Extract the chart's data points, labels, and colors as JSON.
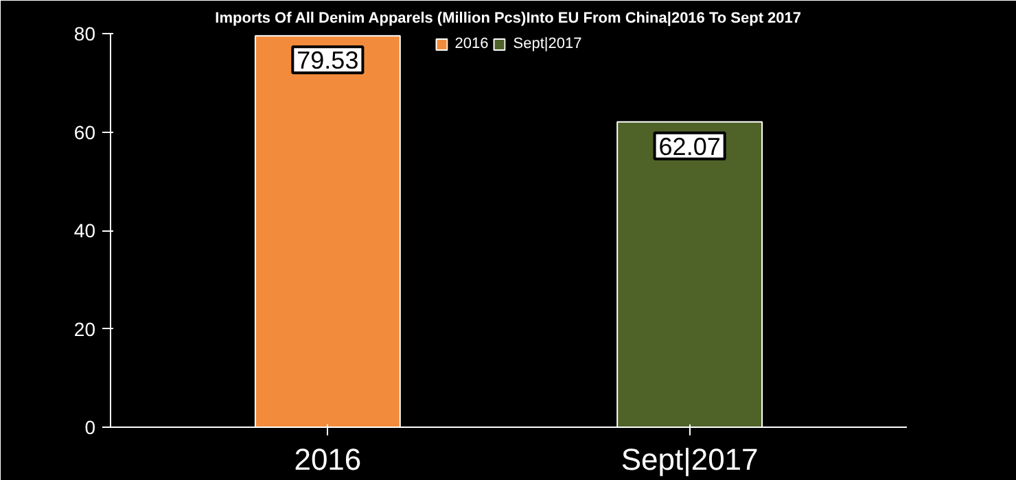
{
  "chart_data": {
    "type": "bar",
    "title": "Imports Of All Denim Apparels (Million Pcs)Into EU From China|2016 To Sept 2017",
    "categories": [
      "2016",
      "Sept|2017"
    ],
    "series": [
      {
        "name": "2016",
        "color": "#f28c3c",
        "values": [
          79.53,
          null
        ]
      },
      {
        "name": "Sept|2017",
        "color": "#4f6228",
        "values": [
          null,
          62.07
        ]
      }
    ],
    "ylim": [
      0,
      80
    ],
    "yticks": [
      0,
      20,
      40,
      60,
      80
    ],
    "data_labels": true,
    "legend": "top",
    "grid": false
  }
}
